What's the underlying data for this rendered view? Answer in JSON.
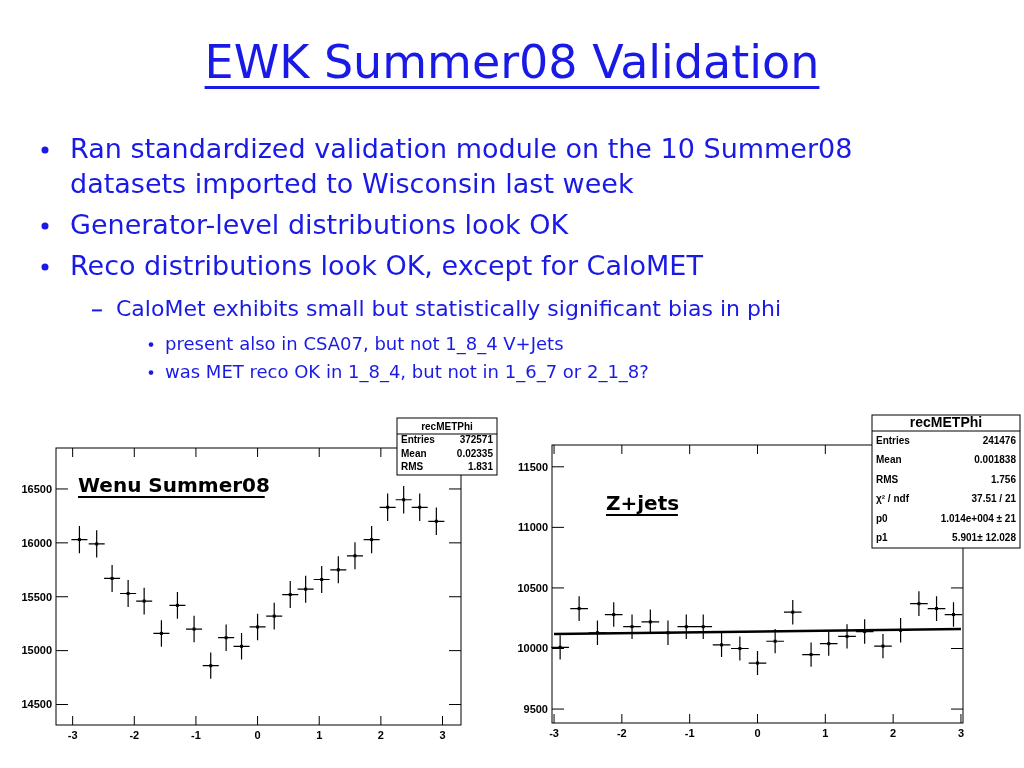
{
  "chart_data": [
    {
      "type": "other",
      "title": "EWK Summer08 Validation",
      "annotations": [
        "Ran standardized validation module on the 10 Summer08 datasets imported to Wisconsin last week",
        "Generator-level distributions look OK",
        "Reco distributions look OK, except for CaloMET",
        "CaloMet exhibits small but statistically significant bias in phi",
        "present also in CSA07, but not 1_8_4 V+Jets",
        "was MET reco OK in 1_8_4, but not in 1_6_7 or 2_1_8?"
      ]
    },
    {
      "type": "scatter",
      "title": "Wenu Summer08",
      "xlim": [
        -3.27,
        3.3
      ],
      "ylim": [
        14310,
        16880
      ],
      "xticks": [
        -3,
        -2,
        -1,
        0,
        1,
        2,
        3
      ],
      "yticks": [
        14500,
        15000,
        15500,
        16000,
        16500
      ],
      "grid": false,
      "annotations": [
        "recMETPhi",
        "Entries",
        "372571",
        "Mean",
        "0.02335",
        "RMS",
        "1.831"
      ],
      "series": [
        {
          "type": "scatter",
          "color": "#000000",
          "x": [
            -2.89,
            -2.61,
            -2.36,
            -2.1,
            -1.84,
            -1.56,
            -1.3,
            -1.03,
            -0.76,
            -0.51,
            -0.26,
            0,
            0.27,
            0.53,
            0.78,
            1.04,
            1.31,
            1.58,
            1.85,
            2.11,
            2.37,
            2.63,
            2.9
          ],
          "values": [
            16030,
            15990,
            15670,
            15530,
            15460,
            15160,
            15420,
            15200,
            14860,
            15120,
            15040,
            15220,
            15320,
            15520,
            15570,
            15660,
            15750,
            15880,
            16030,
            16330,
            16400,
            16330,
            16200
          ],
          "errors": [
            127,
            126,
            125,
            125,
            124,
            123,
            124,
            123,
            122,
            123,
            123,
            123,
            124,
            125,
            125,
            125,
            125,
            126,
            127,
            128,
            128,
            128,
            127
          ],
          "xerrors": [
            0.13,
            0.13,
            0.13,
            0.13,
            0.13,
            0.13,
            0.13,
            0.13,
            0.13,
            0.13,
            0.13,
            0.13,
            0.13,
            0.13,
            0.13,
            0.13,
            0.13,
            0.13,
            0.13,
            0.13,
            0.13,
            0.13,
            0.13
          ]
        }
      ]
    },
    {
      "type": "scatter",
      "title": "Z+jets",
      "xlim": [
        -3.03,
        3.03
      ],
      "ylim": [
        9385,
        11680
      ],
      "xticks": [
        -3,
        -2,
        -1,
        0,
        1,
        2,
        3
      ],
      "yticks": [
        9500,
        10000,
        10500,
        11000,
        11500
      ],
      "grid": false,
      "annotations": [
        "recMETPhi",
        "Entries",
        "241476",
        "Mean",
        "0.001838",
        "RMS",
        "1.756",
        "χ² / ndf",
        "37.51 / 21",
        "p0",
        "1.014e+004 ± 21",
        "p1",
        "5.901± 12.028"
      ],
      "series": [
        {
          "type": "scatter",
          "color": "#000000",
          "x": [
            -2.91,
            -2.63,
            -2.36,
            -2.12,
            -1.85,
            -1.58,
            -1.32,
            -1.05,
            -0.8,
            -0.53,
            -0.26,
            0,
            0.26,
            0.52,
            0.79,
            1.05,
            1.32,
            1.58,
            1.85,
            2.11,
            2.38,
            2.64,
            2.89
          ],
          "values": [
            10010,
            10330,
            10130,
            10280,
            10180,
            10220,
            10130,
            10180,
            10180,
            10030,
            10000,
            9880,
            10060,
            10300,
            9950,
            10040,
            10100,
            10140,
            10020,
            10150,
            10370,
            10330,
            10280
          ],
          "errors": [
            100,
            102,
            101,
            101,
            101,
            101,
            101,
            101,
            101,
            100,
            100,
            99,
            100,
            101,
            100,
            100,
            101,
            101,
            100,
            101,
            102,
            102,
            101
          ],
          "xerrors": [
            0.13,
            0.13,
            0.13,
            0.13,
            0.13,
            0.13,
            0.13,
            0.13,
            0.13,
            0.13,
            0.13,
            0.13,
            0.13,
            0.13,
            0.13,
            0.13,
            0.13,
            0.13,
            0.13,
            0.13,
            0.13,
            0.13,
            0.13
          ]
        },
        {
          "type": "line",
          "color": "#000000",
          "x": [
            -3,
            3
          ],
          "values": [
            10120,
            10160
          ]
        }
      ]
    }
  ]
}
